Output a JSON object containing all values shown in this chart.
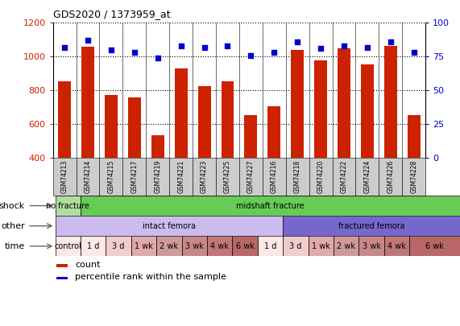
{
  "title": "GDS2020 / 1373959_at",
  "samples": [
    "GSM74213",
    "GSM74214",
    "GSM74215",
    "GSM74217",
    "GSM74219",
    "GSM74221",
    "GSM74223",
    "GSM74225",
    "GSM74227",
    "GSM74216",
    "GSM74218",
    "GSM74220",
    "GSM74222",
    "GSM74224",
    "GSM74226",
    "GSM74228"
  ],
  "counts": [
    855,
    1060,
    775,
    760,
    535,
    930,
    825,
    855,
    655,
    705,
    1040,
    980,
    1050,
    955,
    1065,
    655
  ],
  "percentile_ranks": [
    82,
    87,
    80,
    78,
    74,
    83,
    82,
    83,
    76,
    78,
    86,
    81,
    83,
    82,
    86,
    78
  ],
  "bar_color": "#cc2200",
  "dot_color": "#0000cc",
  "ylim_left": [
    400,
    1200
  ],
  "ylim_right": [
    0,
    100
  ],
  "yticks_left": [
    400,
    600,
    800,
    1000,
    1200
  ],
  "yticks_right": [
    0,
    25,
    50,
    75,
    100
  ],
  "shock_labels": [
    {
      "text": "no fracture",
      "start": 0,
      "end": 1,
      "color": "#aedd9e"
    },
    {
      "text": "midshaft fracture",
      "start": 1,
      "end": 16,
      "color": "#66cc55"
    }
  ],
  "other_labels": [
    {
      "text": "intact femora",
      "start": 0,
      "end": 9,
      "color": "#ccbbee"
    },
    {
      "text": "fractured femora",
      "start": 9,
      "end": 16,
      "color": "#7766cc"
    }
  ],
  "time_labels": [
    {
      "text": "control",
      "start": 0,
      "end": 1,
      "color": "#fde8e8"
    },
    {
      "text": "1 d",
      "start": 1,
      "end": 2,
      "color": "#fde8e8"
    },
    {
      "text": "3 d",
      "start": 2,
      "end": 3,
      "color": "#f0cccc"
    },
    {
      "text": "1 wk",
      "start": 3,
      "end": 4,
      "color": "#e0aaaa"
    },
    {
      "text": "2 wk",
      "start": 4,
      "end": 5,
      "color": "#d09999"
    },
    {
      "text": "3 wk",
      "start": 5,
      "end": 6,
      "color": "#c88888"
    },
    {
      "text": "4 wk",
      "start": 6,
      "end": 7,
      "color": "#c07777"
    },
    {
      "text": "6 wk",
      "start": 7,
      "end": 8,
      "color": "#b86666"
    },
    {
      "text": "1 d",
      "start": 8,
      "end": 9,
      "color": "#fde8e8"
    },
    {
      "text": "3 d",
      "start": 9,
      "end": 10,
      "color": "#f0cccc"
    },
    {
      "text": "1 wk",
      "start": 10,
      "end": 11,
      "color": "#e0aaaa"
    },
    {
      "text": "2 wk",
      "start": 11,
      "end": 12,
      "color": "#d09999"
    },
    {
      "text": "3 wk",
      "start": 12,
      "end": 13,
      "color": "#c88888"
    },
    {
      "text": "4 wk",
      "start": 13,
      "end": 14,
      "color": "#c07777"
    },
    {
      "text": "6 wk",
      "start": 14,
      "end": 16,
      "color": "#b86666"
    }
  ],
  "row_label_names": [
    "shock",
    "other",
    "time"
  ],
  "bg_color": "#ffffff",
  "chart_bg": "#ffffff",
  "tick_color_left": "#cc2200",
  "tick_color_right": "#0000cc",
  "xticklabel_bg": "#cccccc"
}
